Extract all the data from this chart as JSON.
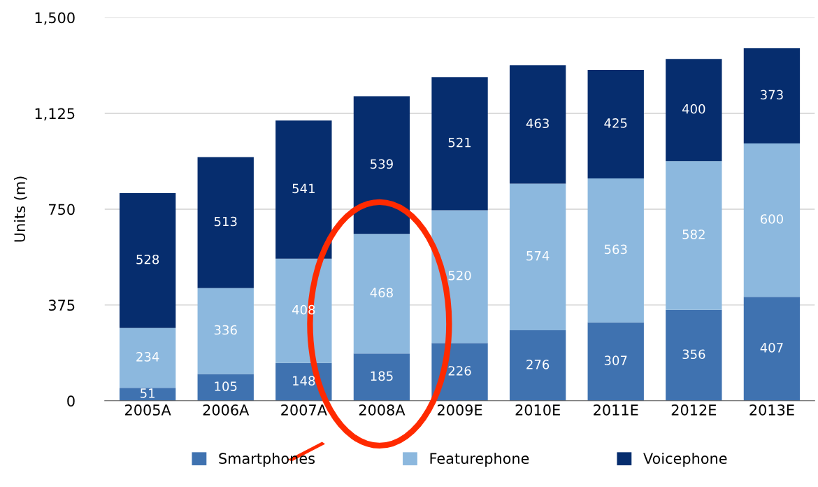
{
  "chart_data": {
    "type": "bar",
    "stacked": true,
    "ylabel": "Units (m)",
    "categories": [
      "2005A",
      "2006A",
      "2007A",
      "2008A",
      "2009E",
      "2010E",
      "2011E",
      "2012E",
      "2013E"
    ],
    "series": [
      {
        "name": "Smartphones",
        "color": "#3f72b0",
        "values": [
          51,
          105,
          148,
          185,
          226,
          276,
          307,
          356,
          407
        ]
      },
      {
        "name": "Featurephone",
        "color": "#8cb8de",
        "values": [
          234,
          336,
          408,
          468,
          520,
          574,
          563,
          582,
          600
        ]
      },
      {
        "name": "Voicephone",
        "color": "#062d6e",
        "values": [
          528,
          513,
          541,
          539,
          521,
          463,
          425,
          400,
          373
        ]
      }
    ],
    "ylim": [
      0,
      1500
    ],
    "yticks": [
      0,
      375,
      750,
      {
        "value": 1125,
        "label": "1,125"
      },
      {
        "value": 1500,
        "label": "1,500"
      }
    ],
    "grid": "y",
    "legend": "bottom",
    "data_labels": true
  }
}
